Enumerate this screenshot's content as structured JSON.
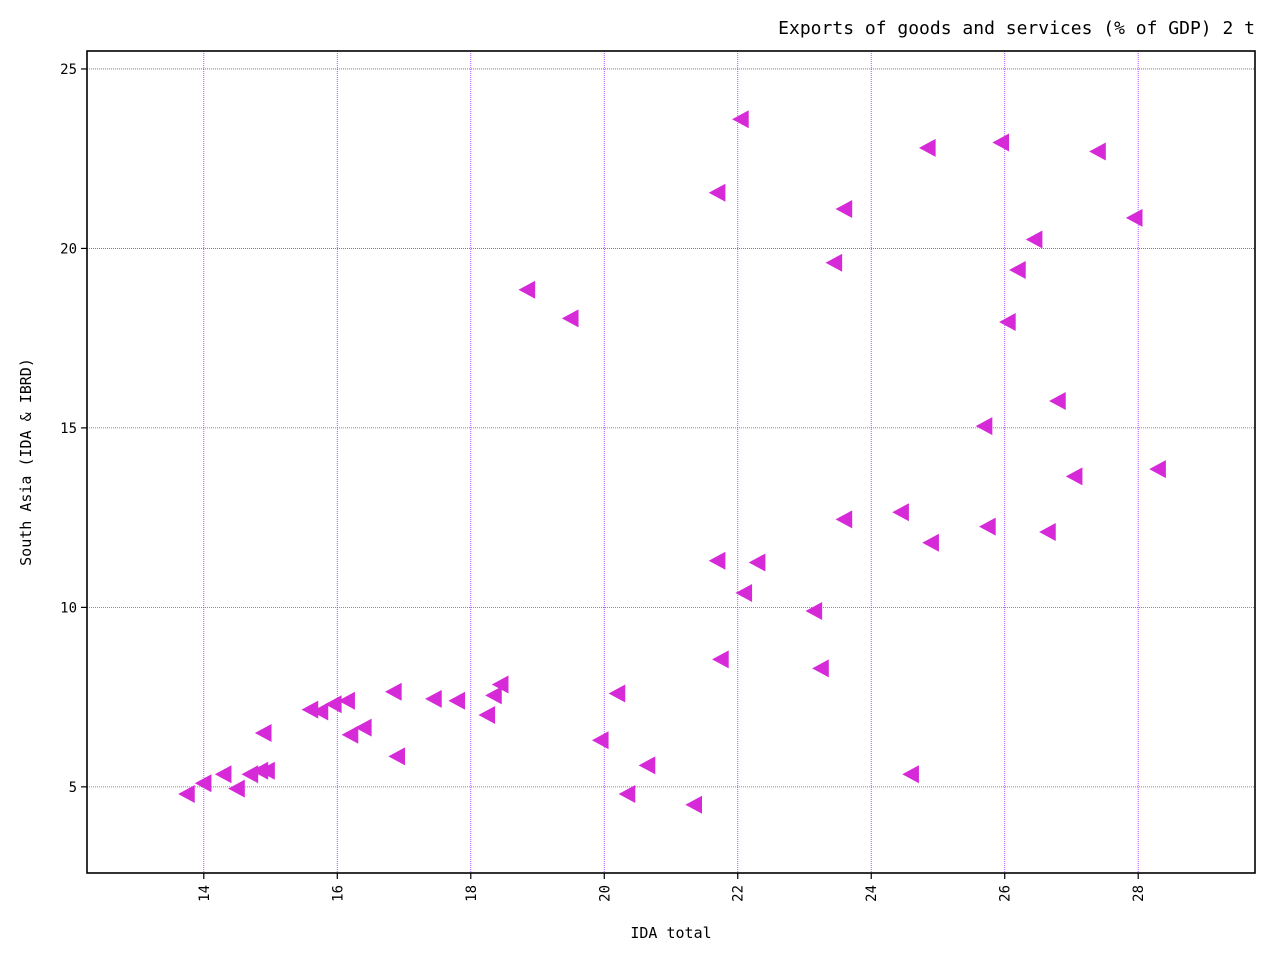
{
  "colors": {
    "marker": "#d62ad8",
    "grid": "#9b30ff",
    "axes": "#000000",
    "background": "#ffffff"
  },
  "chart_data": {
    "type": "scatter",
    "title": "Exports of goods and services (% of GDP) 2 t",
    "xlabel": "IDA total",
    "ylabel": "South Asia (IDA & IBRD)",
    "xlim": [
      12.25,
      29.75
    ],
    "ylim": [
      2.6,
      25.5
    ],
    "grid": true,
    "marker": "triangle-left",
    "xticks": [
      "14",
      "16",
      "18",
      "20",
      "22",
      "24",
      "26",
      "28"
    ],
    "yticks": [
      "5",
      "10",
      "15",
      "20",
      "25"
    ],
    "x": [
      13.75,
      14.0,
      14.3,
      14.5,
      14.7,
      14.85,
      14.95,
      14.9,
      15.6,
      15.75,
      15.95,
      16.15,
      16.4,
      16.2,
      16.85,
      16.9,
      17.45,
      17.8,
      18.25,
      18.35,
      18.45,
      18.85,
      19.5,
      19.95,
      20.2,
      20.35,
      20.65,
      21.35,
      21.7,
      21.75,
      21.7,
      22.05,
      22.1,
      22.3,
      23.15,
      23.25,
      23.45,
      23.6,
      23.6,
      24.45,
      24.6,
      24.85,
      24.9,
      25.7,
      25.75,
      25.95,
      26.05,
      26.2,
      26.45,
      26.65,
      26.8,
      27.05,
      27.4,
      27.95,
      28.3
    ],
    "y": [
      4.8,
      5.1,
      5.35,
      4.95,
      5.35,
      5.45,
      5.45,
      6.5,
      7.15,
      7.1,
      7.3,
      7.4,
      6.65,
      6.45,
      7.65,
      5.85,
      7.45,
      7.4,
      7.0,
      7.55,
      7.85,
      18.85,
      18.05,
      6.3,
      7.6,
      4.8,
      5.6,
      4.5,
      21.55,
      8.55,
      11.3,
      23.6,
      10.4,
      11.25,
      9.9,
      8.3,
      19.6,
      21.1,
      12.45,
      12.65,
      5.35,
      22.8,
      11.8,
      15.05,
      12.25,
      22.95,
      17.95,
      19.4,
      20.25,
      12.1,
      15.75,
      13.65,
      22.7,
      20.85,
      13.85
    ]
  }
}
